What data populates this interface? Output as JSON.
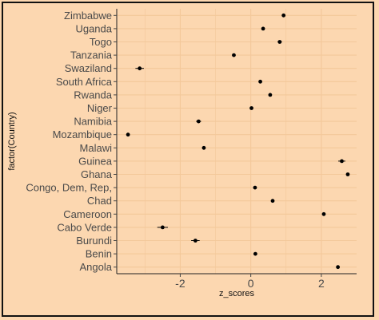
{
  "colors": {
    "background": "#fcd7b0",
    "panel": "#fcd7b0",
    "grid": "#f3c89a",
    "point": "#000000",
    "border": "#111111"
  },
  "chart_data": {
    "type": "scatter",
    "title": "",
    "xlabel": "z_scores",
    "ylabel": "factor(Country)",
    "xlim": [
      -3.8,
      3.0
    ],
    "x_ticks": [
      -2,
      0,
      2
    ],
    "x_tick_labels": [
      "-2",
      "0",
      "2"
    ],
    "grid": true,
    "legend": "none",
    "categories": [
      "Zimbabwe",
      "Uganda",
      "Togo",
      "Tanzania",
      "Swaziland",
      "South Africa",
      "Rwanda",
      "Niger",
      "Namibia",
      "Mozambique",
      "Malawi",
      "Guinea",
      "Ghana",
      "Congo, Dem, Rep,",
      "Chad",
      "Cameroon",
      "Cabo Verde",
      "Burundi",
      "Benin",
      "Angola"
    ],
    "values": [
      0.93,
      0.35,
      0.82,
      -0.48,
      -3.15,
      0.27,
      0.55,
      0.02,
      -1.48,
      -3.48,
      -1.33,
      2.58,
      2.75,
      0.12,
      0.62,
      2.07,
      -2.5,
      -1.57,
      0.13,
      2.47
    ],
    "error_halfwidth": [
      0.02,
      0.02,
      0.06,
      0.02,
      0.12,
      0.02,
      0.02,
      0.02,
      0.07,
      0.02,
      0.02,
      0.1,
      0.02,
      0.02,
      0.02,
      0.02,
      0.15,
      0.12,
      0.02,
      0.02
    ]
  }
}
